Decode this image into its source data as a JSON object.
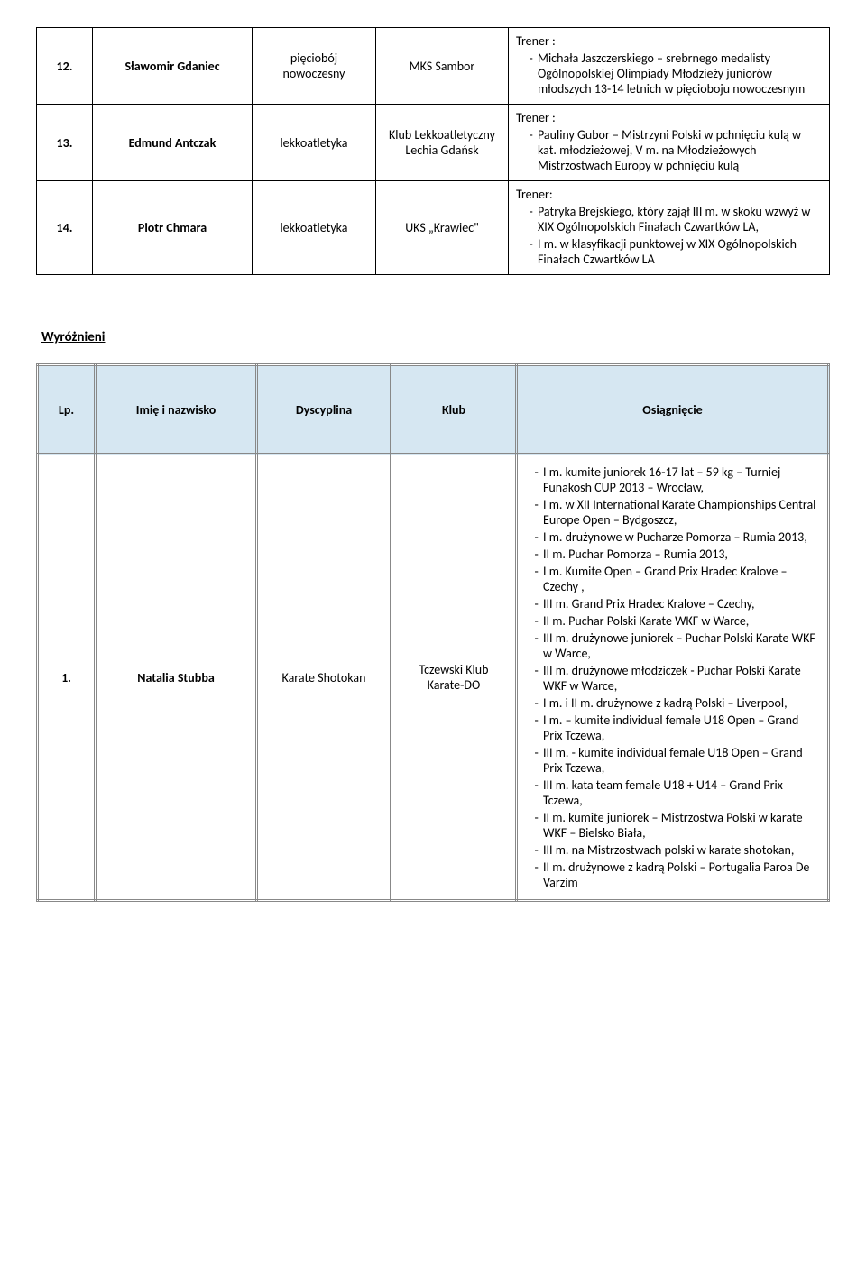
{
  "table1": {
    "rows": [
      {
        "lp": "12.",
        "name": "Sławomir Gdaniec",
        "discipline": "pięciobój nowoczesny",
        "club": "MKS Sambor",
        "trener_label": "Trener :",
        "achievements": [
          "Michała Jaszczerskiego – srebrnego medalisty Ogólnopolskiej Olimpiady Młodzieży juniorów młodszych 13-14 letnich w pięcioboju nowoczesnym"
        ]
      },
      {
        "lp": "13.",
        "name": "Edmund Antczak",
        "discipline": "lekkoatletyka",
        "club": "Klub Lekkoatletyczny Lechia Gdańsk",
        "trener_label": "Trener :",
        "achievements": [
          "Pauliny Gubor – Mistrzyni Polski w pchnięciu kulą w kat. młodzieżowej, V m. na Młodzieżowych Mistrzostwach Europy w pchnięciu kulą"
        ]
      },
      {
        "lp": "14.",
        "name": "Piotr Chmara",
        "discipline": "lekkoatletyka",
        "club": "UKS „Krawiec\"",
        "trener_label": "Trener:",
        "achievements": [
          "Patryka Brejskiego, który zajął III m. w skoku wzwyż w XIX Ogólnopolskich Finałach Czwartków LA,",
          "I m. w klasyfikacji punktowej w XIX Ogólnopolskich Finałach Czwartków LA"
        ]
      }
    ]
  },
  "section_title": "Wyróżnieni",
  "table2": {
    "headers": {
      "lp": "Lp.",
      "name": "Imię i nazwisko",
      "discipline": "Dyscyplina",
      "club": "Klub",
      "achievement": "Osiągnięcie"
    },
    "rows": [
      {
        "lp": "1.",
        "name": "Natalia Stubba",
        "discipline": "Karate Shotokan",
        "club": "Tczewski Klub Karate-DO",
        "achievements": [
          "I m. kumite juniorek 16-17 lat – 59 kg – Turniej Funakosh CUP 2013 – Wrocław,",
          "I m. w XII International Karate Championships Central Europe Open – Bydgoszcz,",
          "I m. drużynowe w Pucharze Pomorza – Rumia 2013,",
          "II m. Puchar Pomorza – Rumia 2013,",
          "I m. Kumite Open – Grand Prix Hradec Kralove – Czechy ,",
          "III m. Grand Prix Hradec Kralove – Czechy,",
          "II m. Puchar Polski Karate WKF w Warce,",
          "III m. drużynowe juniorek – Puchar Polski Karate WKF w Warce,",
          "III m. drużynowe młodziczek - Puchar Polski Karate WKF w Warce,",
          "I m. i II m. drużynowe z kadrą Polski – Liverpool,",
          "I m. – kumite individual female U18 Open – Grand Prix Tczewa,",
          "III m. - kumite individual female U18 Open – Grand Prix Tczewa,",
          "III m. kata team female U18 + U14 – Grand Prix Tczewa,",
          "II m. kumite juniorek – Mistrzostwa Polski w karate WKF – Bielsko Biała,",
          "III m. na Mistrzostwach polski w karate shotokan,",
          "II m. drużynowe z kadrą Polski – Portugalia Paroa De Varzim"
        ]
      }
    ]
  }
}
